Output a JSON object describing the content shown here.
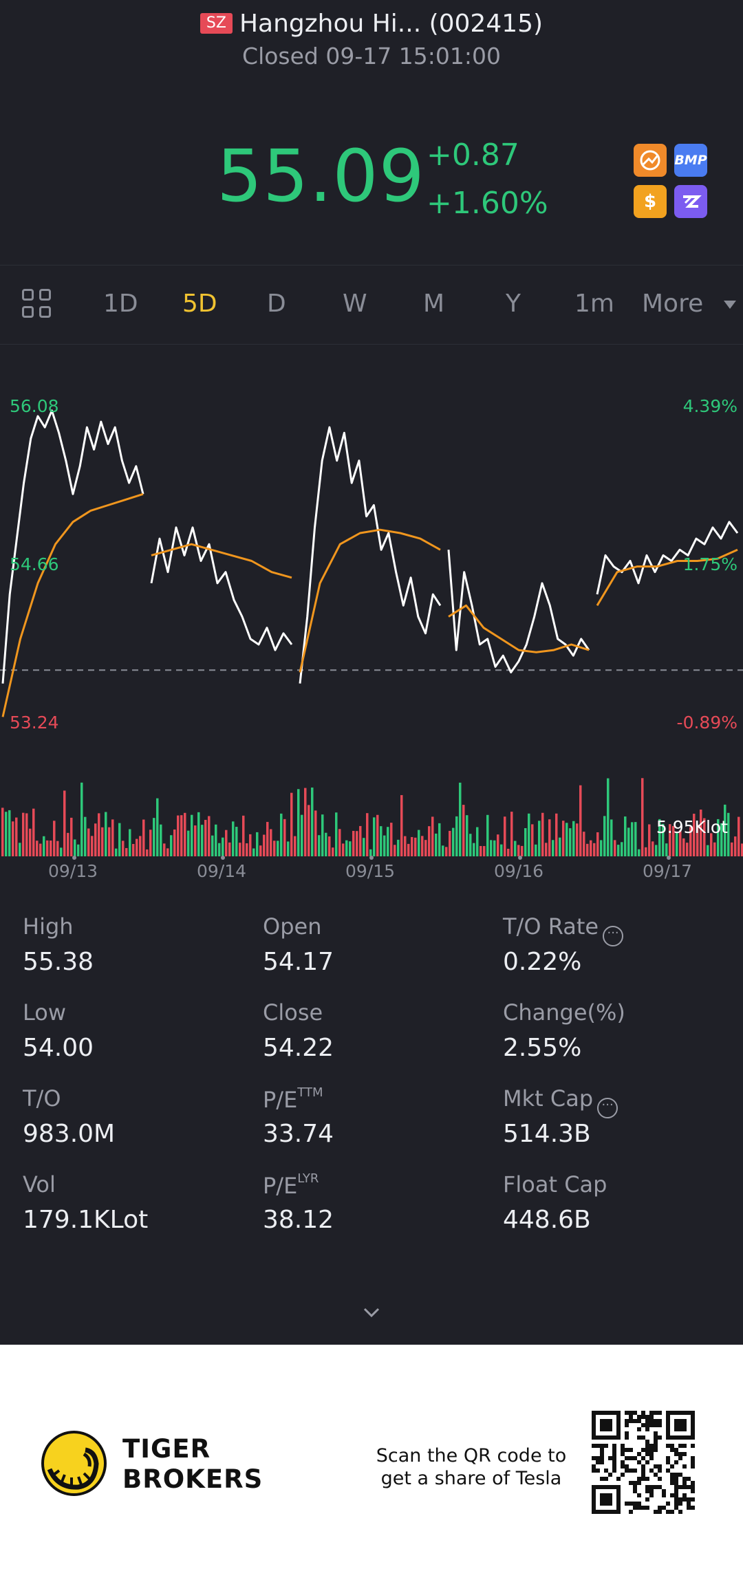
{
  "header": {
    "market_tag": "SZ",
    "title": "Hangzhou Hi... (002415)",
    "status": "Closed 09-17 15:01:00",
    "price": "55.09",
    "change": "+0.87",
    "change_pct": "+1.60%",
    "badges": [
      "arrows-icon",
      "BMP",
      "$",
      "ZZ"
    ],
    "price_color": "#2ec87a"
  },
  "tabs": {
    "items": [
      "1D",
      "5D",
      "D",
      "W",
      "M",
      "Y",
      "1m",
      "More"
    ],
    "active": "5D"
  },
  "chart_data": {
    "type": "line",
    "title": "",
    "y_left_ticks": [
      "56.08",
      "54.66",
      "53.24"
    ],
    "y_right_ticks": [
      "4.39%",
      "1.75%",
      "-0.89%"
    ],
    "x_ticks": [
      "09/13",
      "09/14",
      "09/15",
      "09/16",
      "09/17"
    ],
    "ylim": [
      53.24,
      56.08
    ],
    "prev_close": 53.72,
    "volume_label": "5.95Klot",
    "series": [
      {
        "color": "#ffffff",
        "days": [
          [
            53.6,
            54.4,
            54.9,
            55.4,
            55.8,
            56.0,
            55.9,
            56.05,
            55.85,
            55.6,
            55.3,
            55.55,
            55.9,
            55.7,
            55.95,
            55.75,
            55.9,
            55.6,
            55.4,
            55.55,
            55.3
          ],
          [
            54.5,
            54.9,
            54.6,
            55.0,
            54.75,
            55.0,
            54.7,
            54.85,
            54.5,
            54.6,
            54.35,
            54.2,
            54.0,
            53.95,
            54.1,
            53.9,
            54.05,
            53.95
          ],
          [
            53.6,
            54.2,
            55.0,
            55.6,
            55.9,
            55.6,
            55.85,
            55.4,
            55.6,
            55.1,
            55.2,
            54.8,
            54.95,
            54.6,
            54.3,
            54.55,
            54.2,
            54.05,
            54.4,
            54.3
          ],
          [
            54.8,
            53.9,
            54.6,
            54.3,
            53.95,
            54.0,
            53.75,
            53.85,
            53.7,
            53.8,
            53.95,
            54.2,
            54.5,
            54.3,
            54.0,
            53.95,
            53.85,
            54.0,
            53.9
          ],
          [
            54.4,
            54.75,
            54.65,
            54.6,
            54.7,
            54.5,
            54.75,
            54.6,
            54.75,
            54.7,
            54.8,
            54.75,
            54.9,
            54.85,
            55.0,
            54.9,
            55.05,
            54.95
          ]
        ]
      },
      {
        "color": "#f0961e",
        "days": [
          [
            53.3,
            54.0,
            54.5,
            54.85,
            55.05,
            55.15,
            55.2,
            55.25,
            55.3
          ],
          [
            54.75,
            54.8,
            54.85,
            54.8,
            54.75,
            54.7,
            54.6,
            54.55
          ],
          [
            53.7,
            54.5,
            54.85,
            54.95,
            54.98,
            54.95,
            54.9,
            54.8
          ],
          [
            54.2,
            54.3,
            54.1,
            54.0,
            53.9,
            53.88,
            53.9,
            53.95,
            53.9
          ],
          [
            54.3,
            54.6,
            54.65,
            54.65,
            54.7,
            54.7,
            54.72,
            54.8
          ]
        ]
      }
    ]
  },
  "stats": [
    {
      "label": "High",
      "value": "55.38"
    },
    {
      "label": "Open",
      "value": "54.17"
    },
    {
      "label": "T/O Rate",
      "value": "0.22%",
      "info": true
    },
    {
      "label": "Low",
      "value": "54.00"
    },
    {
      "label": "Close",
      "value": "54.22"
    },
    {
      "label": "Change(%)",
      "value": "2.55%"
    },
    {
      "label": "T/O",
      "value": "983.0M"
    },
    {
      "label": "P/E",
      "sup": "TTM",
      "value": "33.74"
    },
    {
      "label": "Mkt Cap",
      "value": "514.3B",
      "info": true
    },
    {
      "label": "Vol",
      "value": "179.1KLot"
    },
    {
      "label": "P/E",
      "sup": "LYR",
      "value": "38.12"
    },
    {
      "label": "Float Cap",
      "value": "448.6B"
    }
  ],
  "footer": {
    "brand_line1": "TIGER",
    "brand_line2": "BROKERS",
    "scan_text_1": "Scan the QR code to",
    "scan_text_2": "get a share of Tesla"
  }
}
